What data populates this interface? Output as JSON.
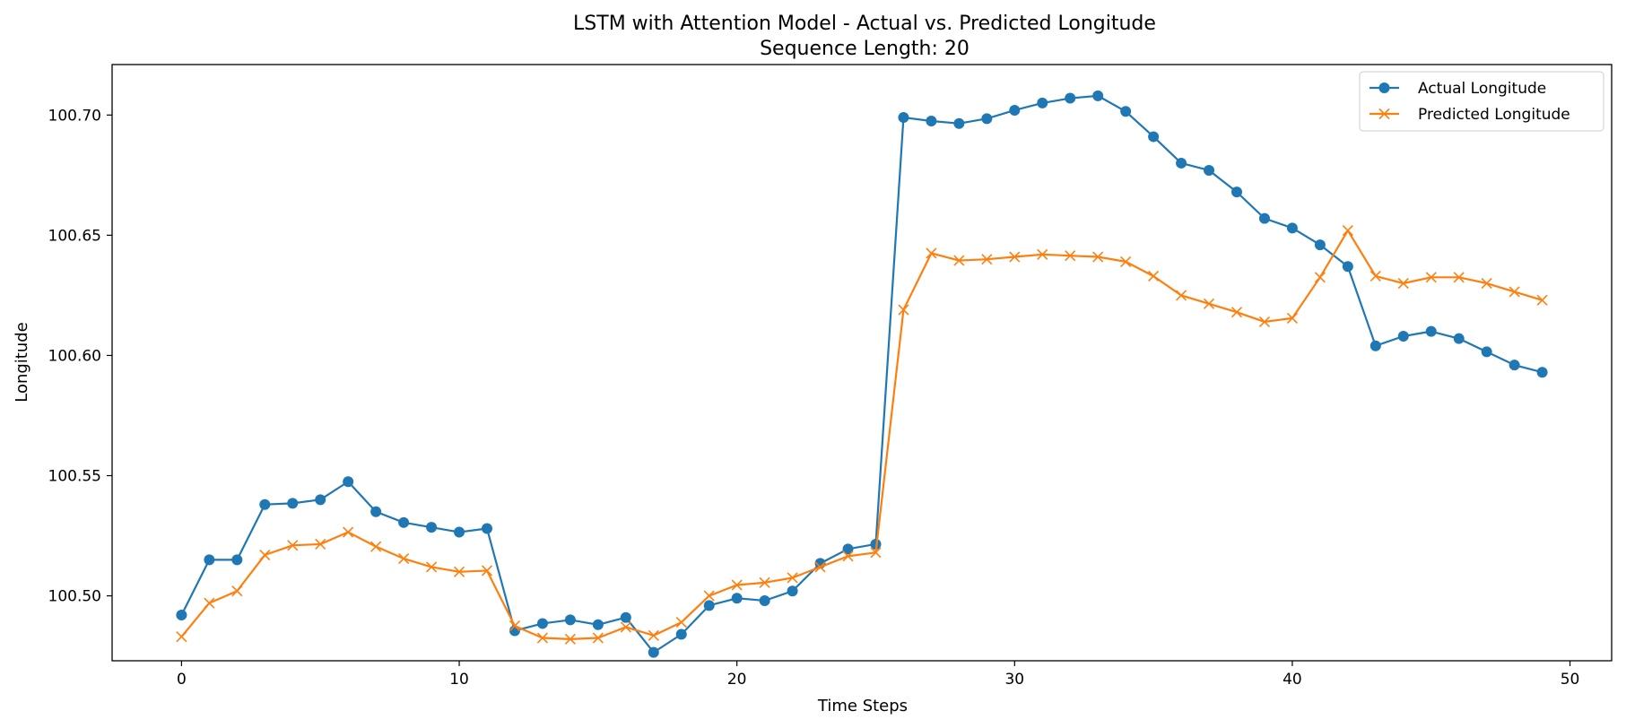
{
  "chart_data": {
    "type": "line",
    "title": "LSTM with Attention Model - Actual vs. Predicted Longitude",
    "subtitle": "Sequence Length: 20",
    "xlabel": "Time Steps",
    "ylabel": "Longitude",
    "xlim": [
      -2.5,
      51.5
    ],
    "ylim": [
      100.473,
      100.721
    ],
    "xticks": [
      0,
      10,
      20,
      30,
      40,
      50
    ],
    "xtick_labels": [
      "0",
      "10",
      "20",
      "30",
      "40",
      "50"
    ],
    "yticks": [
      100.5,
      100.55,
      100.6,
      100.65,
      100.7
    ],
    "ytick_labels": [
      "100.50",
      "100.55",
      "100.60",
      "100.65",
      "100.70"
    ],
    "grid": false,
    "legend_position": "top-right",
    "x": [
      0,
      1,
      2,
      3,
      4,
      5,
      6,
      7,
      8,
      9,
      10,
      11,
      12,
      13,
      14,
      15,
      16,
      17,
      18,
      19,
      20,
      21,
      22,
      23,
      24,
      25,
      26,
      27,
      28,
      29,
      30,
      31,
      32,
      33,
      34,
      35,
      36,
      37,
      38,
      39,
      40,
      41,
      42,
      43,
      44,
      45,
      46,
      47,
      48,
      49
    ],
    "series": [
      {
        "name": "Actual Longitude",
        "color": "#1f77b4",
        "marker": "circle",
        "values": [
          100.492,
          100.515,
          100.515,
          100.538,
          100.5385,
          100.54,
          100.5475,
          100.535,
          100.5305,
          100.5285,
          100.5265,
          100.528,
          100.4855,
          100.4885,
          100.49,
          100.488,
          100.491,
          100.4765,
          100.484,
          100.496,
          100.499,
          100.498,
          100.502,
          100.5135,
          100.5195,
          100.5215,
          100.699,
          100.6975,
          100.6965,
          100.6985,
          100.702,
          100.705,
          100.707,
          100.708,
          100.7015,
          100.691,
          100.68,
          100.677,
          100.668,
          100.657,
          100.653,
          100.646,
          100.637,
          100.604,
          100.608,
          100.61,
          100.607,
          100.6015,
          100.596,
          100.593
        ]
      },
      {
        "name": "Predicted Longitude",
        "color": "#ff7f0e",
        "marker": "x",
        "values": [
          100.483,
          100.497,
          100.502,
          100.517,
          100.521,
          100.5215,
          100.5265,
          100.5205,
          100.5155,
          100.512,
          100.51,
          100.5105,
          100.4875,
          100.4825,
          100.482,
          100.4825,
          100.487,
          100.4835,
          100.489,
          100.5,
          100.5045,
          100.5055,
          100.5075,
          100.512,
          100.5165,
          100.518,
          100.619,
          100.6425,
          100.6395,
          100.64,
          100.641,
          100.642,
          100.6415,
          100.641,
          100.639,
          100.633,
          100.625,
          100.6215,
          100.618,
          100.614,
          100.6155,
          100.6325,
          100.652,
          100.633,
          100.63,
          100.6325,
          100.6325,
          100.63,
          100.6265,
          100.623
        ]
      }
    ]
  }
}
